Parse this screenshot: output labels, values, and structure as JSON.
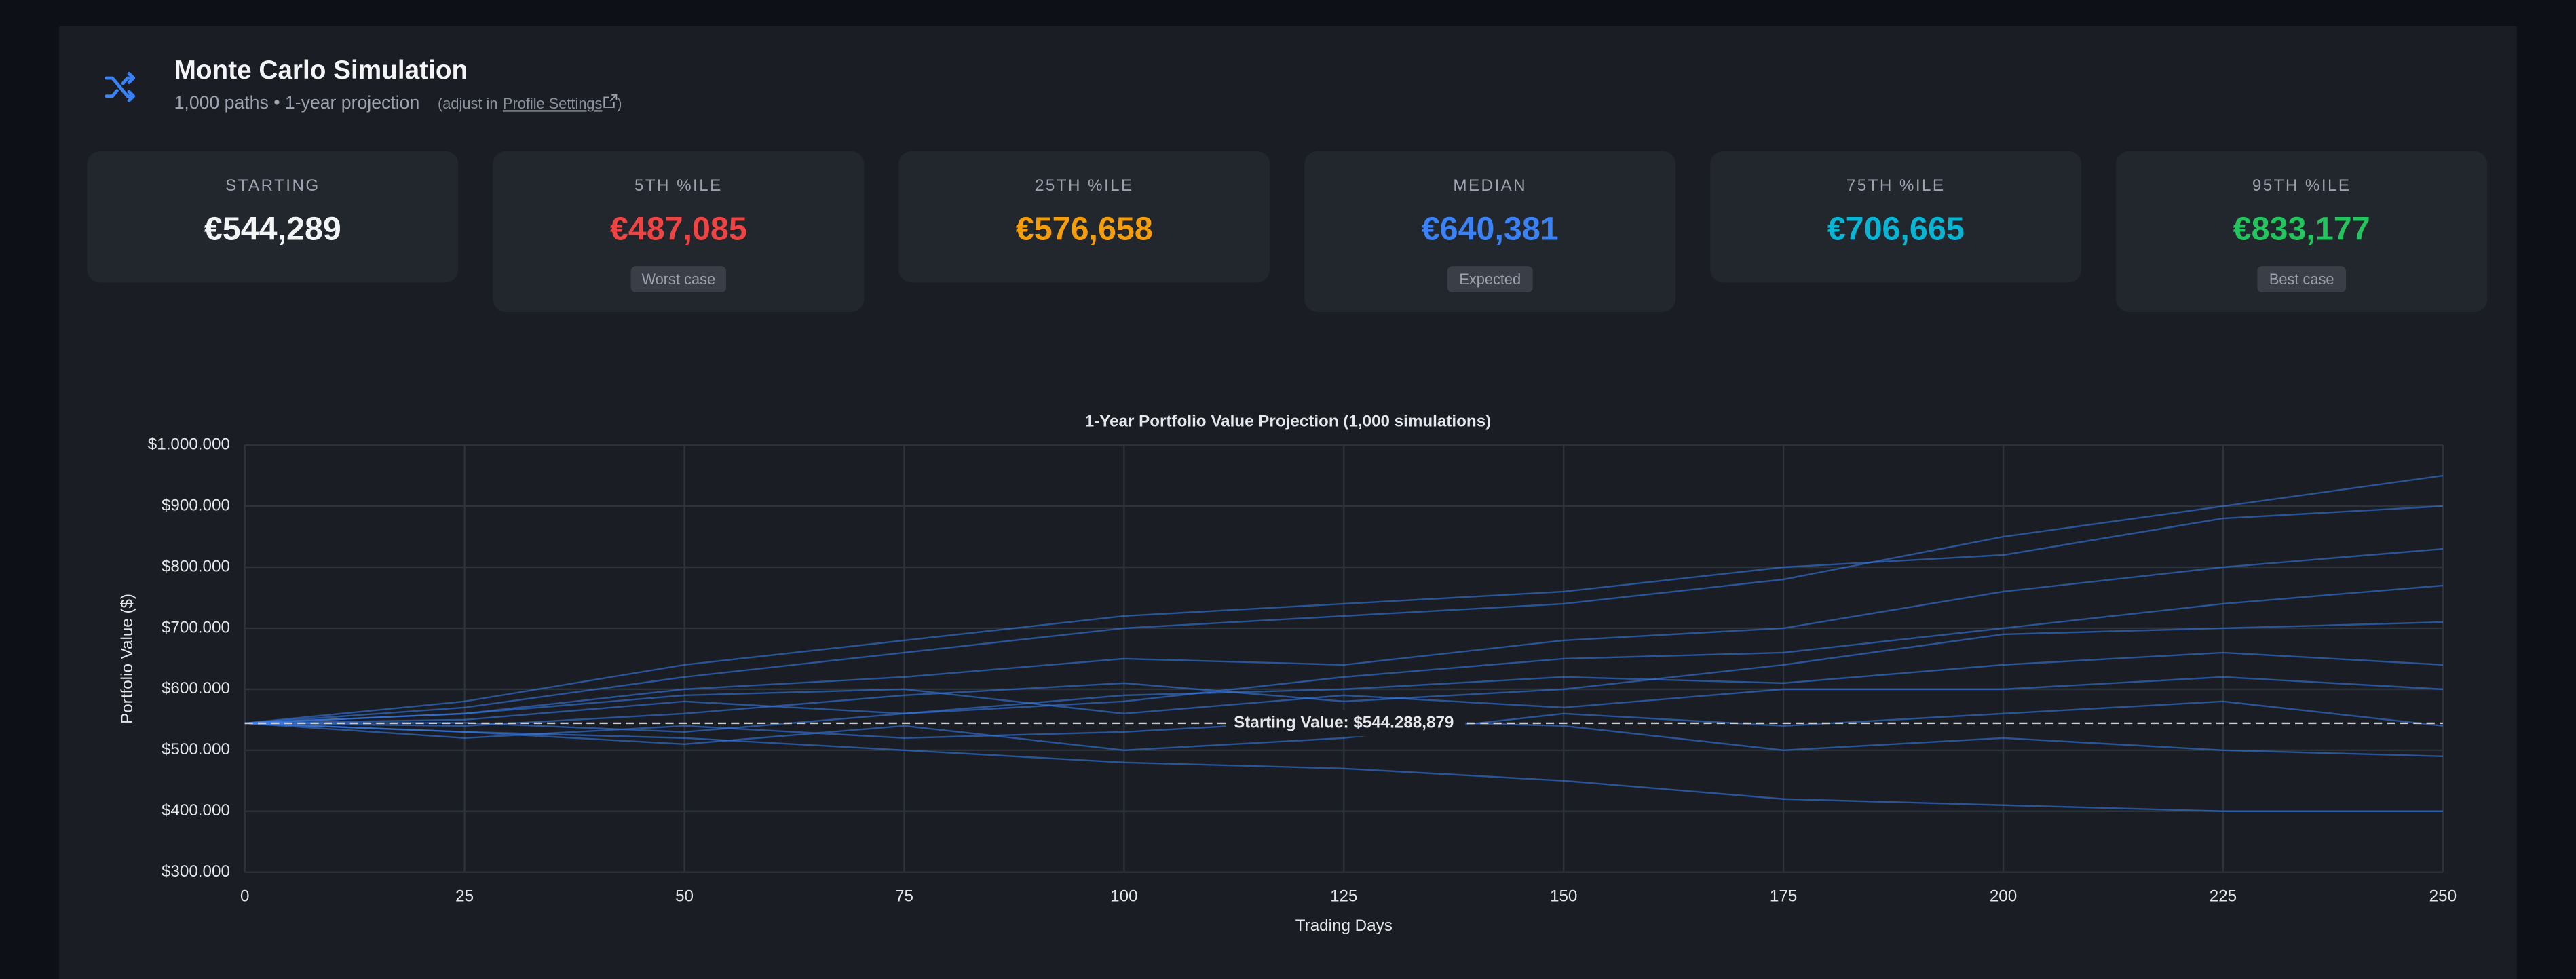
{
  "header": {
    "title": "Monte Carlo Simulation",
    "subtitle": "1,000 paths • 1-year projection",
    "adjust_prefix": "(adjust in",
    "link": "Profile Settings",
    "adjust_suffix": ")"
  },
  "stats": [
    {
      "label": "STARTING",
      "value": "€544,289",
      "color": "#f3f4f6"
    },
    {
      "label": "5TH %ILE",
      "value": "€487,085",
      "badge": "Worst case",
      "color": "#ef4444"
    },
    {
      "label": "25TH %ILE",
      "value": "€576,658",
      "color": "#f59e0b"
    },
    {
      "label": "MEDIAN",
      "value": "€640,381",
      "badge": "Expected",
      "color": "#3b82f6"
    },
    {
      "label": "75TH %ILE",
      "value": "€706,665",
      "color": "#06b6d4"
    },
    {
      "label": "95TH %ILE",
      "value": "€833,177",
      "badge": "Best case",
      "color": "#22c55e"
    }
  ],
  "chart_data": {
    "type": "line",
    "title": "1-Year Portfolio Value Projection (1,000 simulations)",
    "x_label": "Trading Days",
    "y_label": "Portfolio Value ($)",
    "x": [
      0,
      25,
      50,
      75,
      100,
      125,
      150,
      175,
      200,
      225,
      250
    ],
    "xlim": [
      0,
      250
    ],
    "xticks": [
      0,
      25,
      50,
      75,
      100,
      125,
      150,
      175,
      200,
      225,
      250
    ],
    "ylim": [
      300000,
      1000000
    ],
    "yticks": [
      {
        "value": 300000,
        "label": "$300.000"
      },
      {
        "value": 400000,
        "label": "$400.000"
      },
      {
        "value": 500000,
        "label": "$500.000"
      },
      {
        "value": 600000,
        "label": "$600.000"
      },
      {
        "value": 700000,
        "label": "$700.000"
      },
      {
        "value": 800000,
        "label": "$800.000"
      },
      {
        "value": 900000,
        "label": "$900.000"
      },
      {
        "value": 1000000,
        "label": "$1.000.000"
      }
    ],
    "grid": true,
    "annotation": {
      "label": "Starting Value: $544.288,879",
      "value": 544288.879
    },
    "series": [
      {
        "color": "#3b82f6",
        "values": [
          544289,
          560000,
          600000,
          620000,
          650000,
          640000,
          680000,
          700000,
          760000,
          800000,
          830000
        ]
      },
      {
        "color": "#3b82f6",
        "values": [
          544289,
          530000,
          520000,
          500000,
          480000,
          470000,
          450000,
          420000,
          410000,
          400000,
          400000
        ]
      },
      {
        "color": "#3b82f6",
        "values": [
          544289,
          570000,
          620000,
          660000,
          700000,
          720000,
          740000,
          780000,
          850000,
          900000,
          950000
        ]
      },
      {
        "color": "#3b82f6",
        "values": [
          544289,
          550000,
          580000,
          560000,
          590000,
          600000,
          620000,
          610000,
          640000,
          660000,
          640000
        ]
      },
      {
        "color": "#3b82f6",
        "values": [
          544289,
          540000,
          560000,
          590000,
          610000,
          580000,
          600000,
          640000,
          690000,
          700000,
          710000
        ]
      },
      {
        "color": "#3b82f6",
        "values": [
          544289,
          520000,
          540000,
          520000,
          530000,
          550000,
          540000,
          500000,
          520000,
          500000,
          490000
        ]
      },
      {
        "color": "#3b82f6",
        "values": [
          544289,
          580000,
          640000,
          680000,
          720000,
          740000,
          760000,
          800000,
          820000,
          880000,
          900000
        ]
      },
      {
        "color": "#3b82f6",
        "values": [
          544289,
          545000,
          530000,
          560000,
          580000,
          620000,
          650000,
          660000,
          700000,
          740000,
          770000
        ]
      },
      {
        "color": "#3b82f6",
        "values": [
          544289,
          560000,
          590000,
          600000,
          560000,
          590000,
          570000,
          600000,
          600000,
          620000,
          600000
        ]
      },
      {
        "color": "#3b82f6",
        "values": [
          544289,
          530000,
          510000,
          540000,
          500000,
          520000,
          560000,
          540000,
          560000,
          580000,
          540000
        ]
      }
    ]
  }
}
